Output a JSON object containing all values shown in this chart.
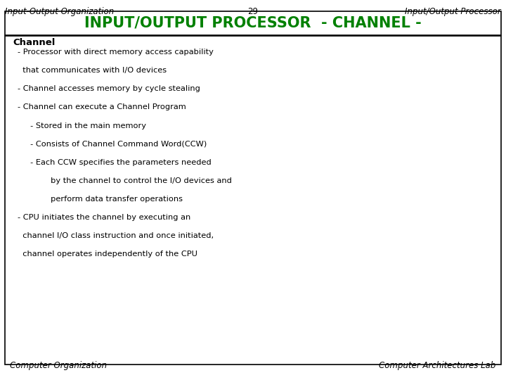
{
  "header_left": "Input-Output Organization",
  "header_center": "29",
  "header_right": "Input/Output Processor",
  "title": "INPUT/OUTPUT PROCESSOR  - CHANNEL -",
  "title_color": "#008000",
  "subtitle": "Channel",
  "bullet_lines": [
    "- Processor with direct memory access capability",
    "  that communicates with I/O devices",
    "- Channel accesses memory by cycle stealing",
    "- Channel can execute a Channel Program",
    "     - Stored in the main memory",
    "     - Consists of Channel Command Word(CCW)",
    "     - Each CCW specifies the parameters needed",
    "             by the channel to control the I/O devices and",
    "             perform data transfer operations",
    "- CPU initiates the channel by executing an",
    "  channel I/O class instruction and once initiated,",
    "  channel operates independently of the CPU"
  ],
  "footer_left": "Computer Organization",
  "footer_right": "Computer Architectures Lab",
  "bg_color": "#ffffff"
}
